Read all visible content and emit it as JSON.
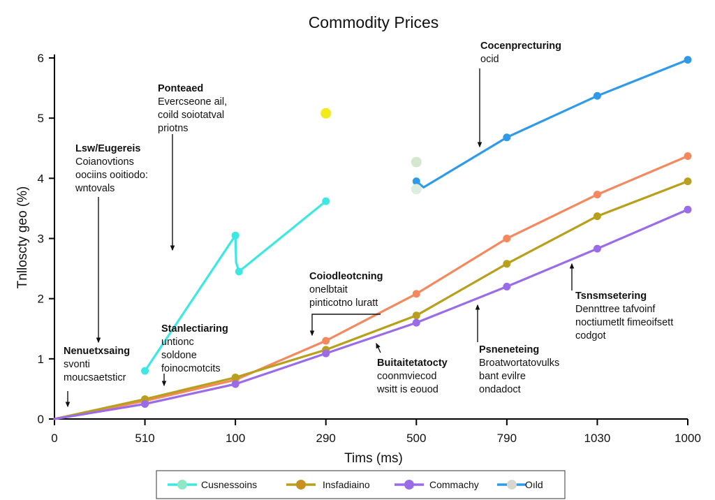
{
  "chart_data": {
    "type": "line",
    "title": "Commodity Prices",
    "xlabel": "Tims (ms)",
    "ylabel": "Tnlloscty geo (%)",
    "x_ticks": [
      {
        "value": 0,
        "label": "0"
      },
      {
        "value": 125,
        "label": "510"
      },
      {
        "value": 250,
        "label": "100"
      },
      {
        "value": 375,
        "label": "290"
      },
      {
        "value": 500,
        "label": "500"
      },
      {
        "value": 625,
        "label": "790"
      },
      {
        "value": 750,
        "label": "1030"
      },
      {
        "value": 875,
        "label": "1000"
      }
    ],
    "y_ticks": [
      0,
      1,
      2,
      3,
      4,
      5,
      6
    ],
    "xlim": [
      0,
      875
    ],
    "ylim": [
      0,
      6
    ],
    "grid": false,
    "legend_position": "bottom",
    "series": [
      {
        "name": "Cusnessoins",
        "color": "#3de8e3",
        "legend_marker": "#8ee8c6",
        "points": [
          [
            125,
            0.8
          ],
          [
            250,
            3.05
          ],
          [
            251,
            2.6
          ],
          [
            255,
            2.45
          ],
          [
            375,
            3.62
          ]
        ]
      },
      {
        "name": "",
        "color": "#f4895f",
        "points": [
          [
            0,
            0
          ],
          [
            125,
            0.3
          ],
          [
            250,
            0.65
          ],
          [
            375,
            1.3
          ],
          [
            500,
            2.08
          ],
          [
            625,
            3.0
          ],
          [
            750,
            3.73
          ],
          [
            875,
            4.37
          ]
        ]
      },
      {
        "name": "Insfadiaino",
        "color": "#b8a01c",
        "legend_marker": "#c7901f",
        "points": [
          [
            0,
            0
          ],
          [
            125,
            0.33
          ],
          [
            250,
            0.69
          ],
          [
            375,
            1.15
          ],
          [
            500,
            1.72
          ],
          [
            625,
            2.58
          ],
          [
            750,
            3.37
          ],
          [
            875,
            3.95
          ]
        ]
      },
      {
        "name": "Commachy",
        "color": "#9a6ce8",
        "legend_marker": "#9a6ce8",
        "points": [
          [
            0,
            0
          ],
          [
            125,
            0.25
          ],
          [
            250,
            0.58
          ],
          [
            375,
            1.09
          ],
          [
            500,
            1.6
          ],
          [
            625,
            2.2
          ],
          [
            750,
            2.83
          ],
          [
            875,
            3.48
          ]
        ]
      },
      {
        "name": "Oıld",
        "color": "#2f9ae8",
        "legend_marker": "#d8d6cf",
        "points": [
          [
            500,
            3.95
          ],
          [
            510,
            3.85
          ],
          [
            625,
            4.68
          ],
          [
            750,
            5.37
          ],
          [
            875,
            5.97
          ]
        ]
      }
    ],
    "extra_points": [
      {
        "x": 375,
        "y": 5.08,
        "color": "#f2ea19"
      },
      {
        "x": 500,
        "y": 4.27,
        "color": "#d4e8d0"
      },
      {
        "x": 500,
        "y": 3.82,
        "color": "#dceede"
      }
    ],
    "annotations": [
      {
        "id": "a1",
        "lines": [
          "Ponteaed",
          "Evercseone ail,",
          "coild soiotatval",
          "priotns"
        ]
      },
      {
        "id": "a2",
        "lines": [
          "Lsw/Eugereis",
          "Coianovtions",
          "oociins ooitiodo:",
          "wntovals"
        ]
      },
      {
        "id": "a3",
        "lines": [
          "Cocenprecturing",
          "ocid"
        ]
      },
      {
        "id": "a4",
        "lines": [
          "Coiodleotcning",
          "onelbtait",
          "pinticotno luratt"
        ]
      },
      {
        "id": "a5",
        "lines": [
          "Stanlectiaring",
          "untionc",
          "soldone",
          "foinocmotcits"
        ]
      },
      {
        "id": "a6",
        "lines": [
          "Nenuetxsaing",
          "svonti",
          "moucsaetsticr"
        ]
      },
      {
        "id": "a7",
        "lines": [
          "Buitaitetatocty",
          "coonmviecod",
          "wsitt is eouod"
        ]
      },
      {
        "id": "a8",
        "lines": [
          "Psneneteing",
          "Broatwortatovulks",
          "bant evilre",
          "ondadoct"
        ]
      },
      {
        "id": "a9",
        "lines": [
          "Tsnsmsetering",
          "Dennttree tafvoinf",
          "noctiumetlt fimeoifsett",
          "codgot"
        ]
      }
    ]
  }
}
